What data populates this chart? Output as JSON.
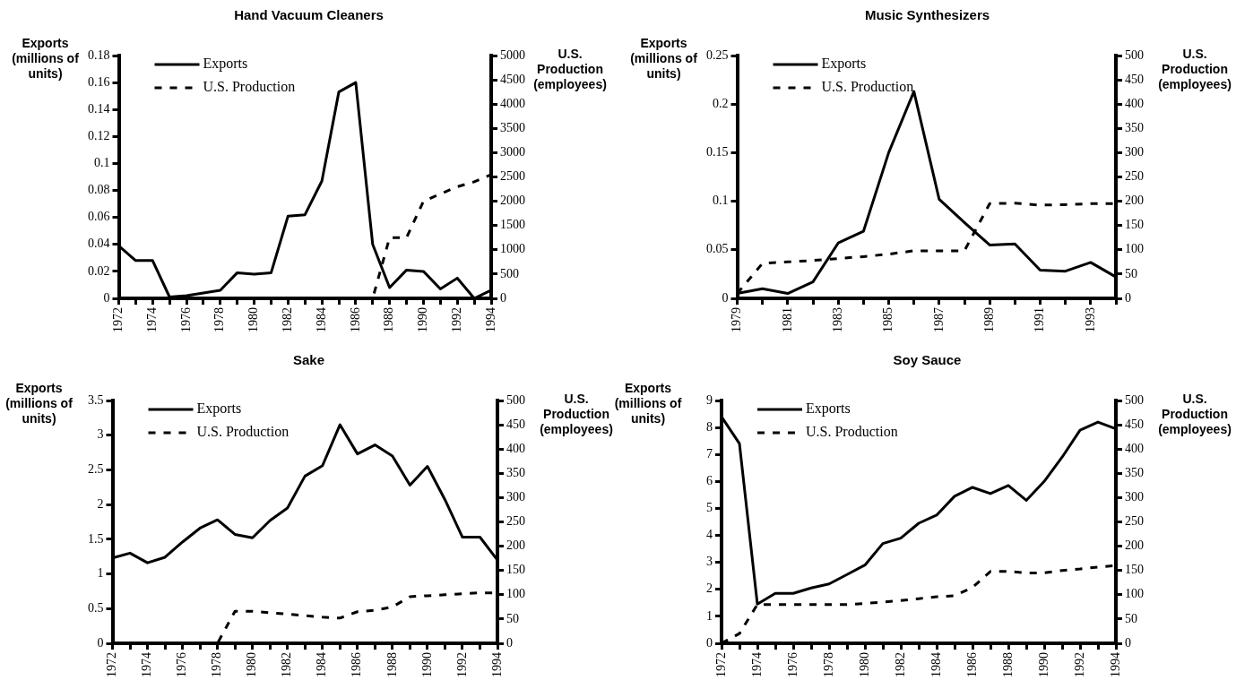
{
  "chart_data": [
    {
      "type": "line",
      "title": "Hand Vacuum Cleaners",
      "ylabel": "Exports (millions of units)",
      "y2label": "U.S. Production (employees)",
      "marker": "none",
      "grid": false,
      "legend": "top left",
      "categories": [
        "1972",
        null,
        "1974",
        null,
        "1976",
        null,
        "1978",
        null,
        "1980",
        null,
        "1982",
        null,
        "1984",
        null,
        "1986",
        null,
        "1988",
        null,
        "1990",
        null,
        "1992",
        null,
        "1994"
      ],
      "ylim": [
        0,
        0.18
      ],
      "yticks": [
        0,
        0.02,
        0.04,
        0.06,
        0.08,
        0.1,
        0.12,
        0.14,
        0.16,
        0.18
      ],
      "y2lim": [
        0,
        5000
      ],
      "y2ticks": [
        0,
        500,
        1000,
        1500,
        2000,
        2500,
        3000,
        3500,
        4000,
        4500,
        5000
      ],
      "series": [
        {
          "name": "Exports",
          "color": "#000000",
          "line_style": "solid",
          "values": [
            0.039,
            0.028,
            0.028,
            0.001,
            0.002,
            0.004,
            0.006,
            0.019,
            0.018,
            0.019,
            0.061,
            0.062,
            0.087,
            0.153,
            0.16,
            0.04,
            0.008,
            0.021,
            0.02,
            0.007,
            0.015,
            0.0,
            0.006
          ]
        },
        {
          "name": "U.S. Production",
          "color": "#000000",
          "line_style": "dashed",
          "axis": "y2",
          "values": [
            0,
            0,
            0,
            0,
            0,
            0,
            0,
            0,
            0,
            0,
            0,
            0,
            0,
            0,
            0,
            0,
            1250,
            1250,
            2000,
            2150,
            2300,
            2400,
            2550
          ]
        }
      ]
    },
    {
      "type": "line",
      "title": "Music Synthesizers",
      "ylabel": "Exports (millions of units)",
      "y2label": "U.S. Production (employees)",
      "marker": "none",
      "grid": false,
      "legend": "top left",
      "categories": [
        "1979",
        null,
        "1981",
        null,
        "1983",
        null,
        "1985",
        null,
        "1987",
        null,
        "1989",
        null,
        "1991",
        null,
        "1993",
        null
      ],
      "ylim": [
        0,
        0.25
      ],
      "yticks": [
        0,
        0.05,
        0.1,
        0.15,
        0.2,
        0.25
      ],
      "y2lim": [
        0,
        500
      ],
      "y2ticks": [
        0,
        50,
        100,
        150,
        200,
        250,
        300,
        350,
        400,
        450,
        500
      ],
      "series": [
        {
          "name": "Exports",
          "color": "#000000",
          "line_style": "solid",
          "values": [
            0.005,
            0.01,
            0.005,
            0.017,
            0.057,
            0.069,
            0.15,
            0.213,
            0.102,
            0.078,
            0.055,
            0.056,
            0.029,
            0.028,
            0.037,
            0.022
          ]
        },
        {
          "name": "U.S. Production",
          "color": "#000000",
          "line_style": "dashed",
          "axis": "y2",
          "values": [
            10,
            72,
            75,
            78,
            82,
            86,
            91,
            98,
            98,
            98,
            195,
            196,
            192,
            193,
            195,
            195
          ]
        }
      ]
    },
    {
      "type": "line",
      "title": "Sake",
      "ylabel": "Exports (millions of units)",
      "y2label": "U.S. Production (employees)",
      "marker": "none",
      "grid": false,
      "legend": "top left",
      "categories": [
        "1972",
        null,
        "1974",
        null,
        "1976",
        null,
        "1978",
        null,
        "1980",
        null,
        "1982",
        null,
        "1984",
        null,
        "1986",
        null,
        "1988",
        null,
        "1990",
        null,
        "1992",
        null,
        "1994"
      ],
      "ylim": [
        0,
        3.5
      ],
      "yticks": [
        0,
        0.5,
        1,
        1.5,
        2,
        2.5,
        3,
        3.5
      ],
      "y2lim": [
        0,
        500
      ],
      "y2ticks": [
        0,
        50,
        100,
        150,
        200,
        250,
        300,
        350,
        400,
        450,
        500
      ],
      "series": [
        {
          "name": "Exports",
          "color": "#000000",
          "line_style": "solid",
          "values": [
            1.23,
            1.3,
            1.16,
            1.24,
            1.46,
            1.66,
            1.78,
            1.57,
            1.52,
            1.77,
            1.95,
            2.41,
            2.56,
            3.15,
            2.73,
            2.86,
            2.7,
            2.28,
            2.55,
            2.07,
            1.53,
            1.53,
            1.2
          ]
        },
        {
          "name": "U.S. Production",
          "color": "#000000",
          "line_style": "dashed",
          "axis": "y2",
          "values": [
            0,
            0,
            0,
            0,
            0,
            0,
            0,
            66,
            66,
            63,
            60,
            57,
            54,
            52,
            65,
            68,
            75,
            96,
            98,
            100,
            102,
            104,
            104
          ]
        }
      ]
    },
    {
      "type": "line",
      "title": "Soy Sauce",
      "ylabel": "Exports (millions of units)",
      "y2label": "U.S. Production (employees)",
      "marker": "none",
      "grid": false,
      "legend": "top left",
      "categories": [
        "1972",
        null,
        "1974",
        null,
        "1976",
        null,
        "1978",
        null,
        "1980",
        null,
        "1982",
        null,
        "1984",
        null,
        "1986",
        null,
        "1988",
        null,
        "1990",
        null,
        "1992",
        null,
        "1994"
      ],
      "ylim": [
        0,
        9
      ],
      "yticks": [
        0,
        1,
        2,
        3,
        4,
        5,
        6,
        7,
        8,
        9
      ],
      "y2lim": [
        0,
        500
      ],
      "y2ticks": [
        0,
        50,
        100,
        150,
        200,
        250,
        300,
        350,
        400,
        450,
        500
      ],
      "series": [
        {
          "name": "Exports",
          "color": "#000000",
          "line_style": "solid",
          "values": [
            8.4,
            7.4,
            1.45,
            1.85,
            1.85,
            2.05,
            2.2,
            2.55,
            2.9,
            3.7,
            3.9,
            4.45,
            4.75,
            5.45,
            5.78,
            5.55,
            5.85,
            5.3,
            6.0,
            6.9,
            7.9,
            8.2,
            7.95
          ]
        },
        {
          "name": "U.S. Production",
          "color": "#000000",
          "line_style": "dashed",
          "axis": "y2",
          "values": [
            0,
            20,
            80,
            80,
            80,
            80,
            80,
            80,
            82,
            85,
            88,
            92,
            96,
            98,
            115,
            148,
            148,
            145,
            145,
            150,
            153,
            157,
            160
          ]
        }
      ]
    }
  ]
}
